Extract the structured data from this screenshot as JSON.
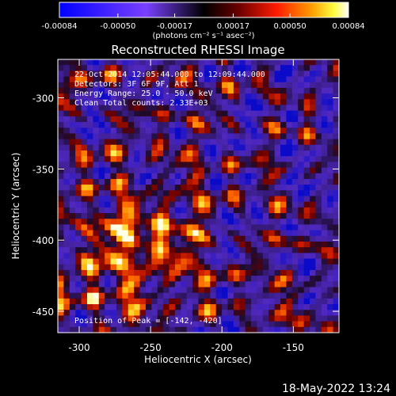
{
  "colorbar": {
    "ticks": [
      "-0.00084",
      "-0.00050",
      "-0.00017",
      "0.00017",
      "0.00050",
      "0.00084"
    ],
    "tick_values": [
      -0.00084,
      -0.0005,
      -0.00017,
      0.00017,
      0.0005,
      0.00084
    ],
    "range": [
      -0.00084,
      0.00084
    ],
    "units_label": "(photons cm⁻² s⁻¹ asec⁻²)",
    "colors": [
      "#0000ff",
      "#5a00ff",
      "#ffffff",
      "#4b0000",
      "#ff0000",
      "#ff8c00",
      "#ffff00",
      "#ffffff"
    ]
  },
  "chart_data": {
    "type": "heatmap",
    "title": "Reconstructed RHESSI Image",
    "xlabel": "Heliocentric X (arcsec)",
    "ylabel": "Heliocentric Y (arcsec)",
    "xlim": [
      -315,
      -118
    ],
    "ylim": [
      -465,
      -273
    ],
    "x_ticks": [
      -300,
      -250,
      -200,
      -150
    ],
    "y_ticks": [
      -300,
      -350,
      -400,
      -450
    ],
    "x_tick_labels": [
      "-300",
      "-250",
      "-200",
      "-150"
    ],
    "y_tick_labels": [
      "-300",
      "-350",
      "-400",
      "-450"
    ],
    "grid": false,
    "annotations": {
      "line1": "22-Oct-2014 12:05:44.000 to 12:09:44.000",
      "line2": "Detectors: 3F 6F 9F, Att 1",
      "line3": "Energy Range: 25.0 - 50.0 keV",
      "line4": "Clean     Total counts: 2.33E+03",
      "peak": "Position of Peak = [-142, -420]"
    }
  },
  "footer": {
    "timestamp": "18-May-2022 13:24"
  }
}
